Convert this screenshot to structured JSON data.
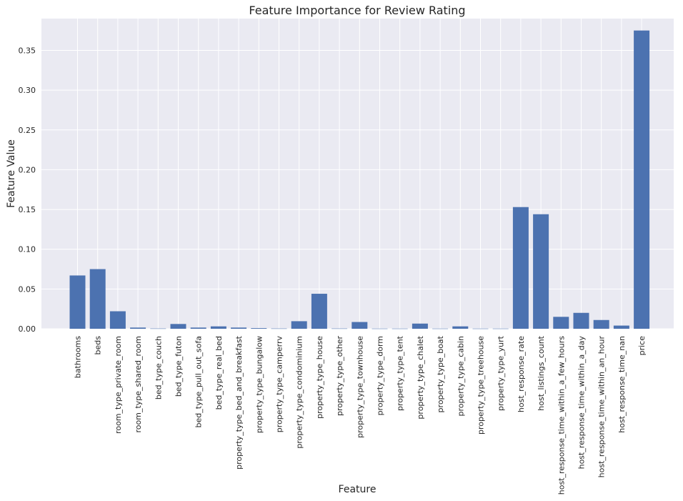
{
  "chart_data": {
    "type": "bar",
    "title": "Feature Importance for Review Rating",
    "xlabel": "Feature",
    "ylabel": "Feature Value",
    "ylim": [
      0,
      0.39
    ],
    "yticks": [
      "0.00",
      "0.05",
      "0.10",
      "0.15",
      "0.20",
      "0.25",
      "0.30",
      "0.35"
    ],
    "ytick_values": [
      0,
      0.05,
      0.1,
      0.15,
      0.2,
      0.25,
      0.3,
      0.35
    ],
    "grid": true,
    "legend": "none",
    "bar_color": "#4c72b0",
    "background_color": "#eaeaf2",
    "categories": [
      "bathrooms",
      "beds",
      "room_type_private_room",
      "room_type_shared_room",
      "bed_type_couch",
      "bed_type_futon",
      "bed_type_pull_out_sofa",
      "bed_type_real_bed",
      "property_type_bed_and_breakfast",
      "property_type_bungalow",
      "property_type_camperrv",
      "property_type_condominium",
      "property_type_house",
      "property_type_other",
      "property_type_townhouse",
      "property_type_dorm",
      "property_type_tent",
      "property_type_chalet",
      "property_type_boat",
      "property_type_cabin",
      "property_type_treehouse",
      "property_type_yurt",
      "host_response_rate",
      "host_listings_count",
      "host_response_time_within_a_few_hours",
      "host_response_time_within_a_day",
      "host_response_time_within_an_hour",
      "host_response_time_nan",
      "price"
    ],
    "values": [
      0.067,
      0.075,
      0.022,
      0.0015,
      0.0003,
      0.006,
      0.0015,
      0.003,
      0.0015,
      0.0008,
      0.0003,
      0.0095,
      0.044,
      0.0003,
      0.0085,
      0.0002,
      0.0002,
      0.0065,
      0.0002,
      0.003,
      0.0002,
      0.0002,
      0.153,
      0.144,
      0.015,
      0.02,
      0.011,
      0.004,
      0.375
    ]
  }
}
